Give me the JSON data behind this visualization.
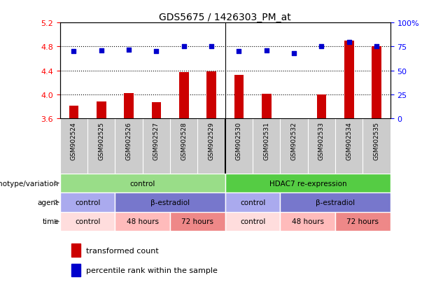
{
  "title": "GDS5675 / 1426303_PM_at",
  "samples": [
    "GSM902524",
    "GSM902525",
    "GSM902526",
    "GSM902527",
    "GSM902528",
    "GSM902529",
    "GSM902530",
    "GSM902531",
    "GSM902532",
    "GSM902533",
    "GSM902534",
    "GSM902535"
  ],
  "bar_values": [
    3.82,
    3.88,
    4.02,
    3.87,
    4.37,
    4.39,
    4.33,
    4.01,
    3.6,
    4.0,
    4.9,
    4.8
  ],
  "dot_values": [
    70,
    71,
    72,
    70,
    75,
    75,
    70,
    71,
    68,
    75,
    80,
    75
  ],
  "ylim_left": [
    3.6,
    5.2
  ],
  "ylim_right": [
    0,
    100
  ],
  "yticks_left": [
    3.6,
    4.0,
    4.4,
    4.8,
    5.2
  ],
  "yticks_right": [
    0,
    25,
    50,
    75,
    100
  ],
  "bar_color": "#cc0000",
  "dot_color": "#0000cc",
  "bg_color": "#ffffff",
  "tick_area_bg": "#cccccc",
  "genotype_row": {
    "label": "genotype/variation",
    "groups": [
      {
        "text": "control",
        "span": [
          0,
          6
        ],
        "color": "#99dd88"
      },
      {
        "text": "HDAC7 re-expression",
        "span": [
          6,
          12
        ],
        "color": "#55cc44"
      }
    ]
  },
  "agent_row": {
    "label": "agent",
    "groups": [
      {
        "text": "control",
        "span": [
          0,
          2
        ],
        "color": "#aaaaee"
      },
      {
        "text": "β-estradiol",
        "span": [
          2,
          6
        ],
        "color": "#7777cc"
      },
      {
        "text": "control",
        "span": [
          6,
          8
        ],
        "color": "#aaaaee"
      },
      {
        "text": "β-estradiol",
        "span": [
          8,
          12
        ],
        "color": "#7777cc"
      }
    ]
  },
  "time_row": {
    "label": "time",
    "groups": [
      {
        "text": "control",
        "span": [
          0,
          2
        ],
        "color": "#ffdddd"
      },
      {
        "text": "48 hours",
        "span": [
          2,
          4
        ],
        "color": "#ffbbbb"
      },
      {
        "text": "72 hours",
        "span": [
          4,
          6
        ],
        "color": "#ee8888"
      },
      {
        "text": "control",
        "span": [
          6,
          8
        ],
        "color": "#ffdddd"
      },
      {
        "text": "48 hours",
        "span": [
          8,
          10
        ],
        "color": "#ffbbbb"
      },
      {
        "text": "72 hours",
        "span": [
          10,
          12
        ],
        "color": "#ee8888"
      }
    ]
  },
  "legend_bar_label": "transformed count",
  "legend_dot_label": "percentile rank within the sample"
}
